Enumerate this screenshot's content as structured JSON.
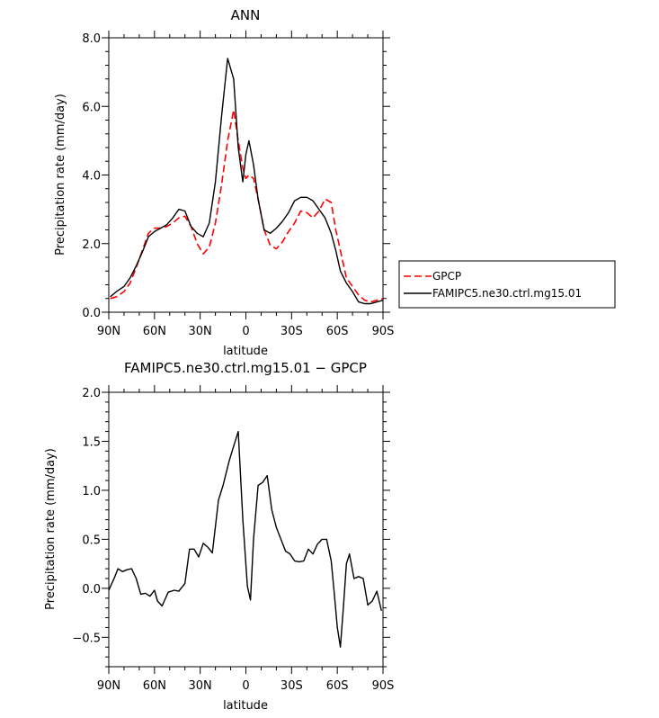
{
  "chart_data": [
    {
      "type": "line",
      "title": "ANN",
      "xlabel": "latitude",
      "ylabel": "Precipitation rate (mm/day)",
      "xlim": [
        90,
        -90
      ],
      "ylim": [
        0,
        8
      ],
      "xticks": [
        90,
        60,
        30,
        0,
        -30,
        -60,
        -90
      ],
      "xtick_labels": [
        "90N",
        "60N",
        "30N",
        "0",
        "30S",
        "60S",
        "90S"
      ],
      "yticks": [
        0,
        2,
        4,
        6,
        8
      ],
      "ytick_labels": [
        "0.0",
        "2.0",
        "4.0",
        "6.0",
        "8.0"
      ],
      "legend_position": "right",
      "series": [
        {
          "name": "GPCP",
          "color": "#ff0000",
          "dash": "dashed",
          "x": [
            89,
            85,
            80,
            76,
            72,
            68,
            64,
            60,
            56,
            52,
            48,
            44,
            40,
            36,
            32,
            28,
            24,
            20,
            16,
            12,
            8,
            5,
            2,
            0,
            -2,
            -5,
            -8,
            -12,
            -16,
            -20,
            -24,
            -28,
            -32,
            -36,
            -40,
            -44,
            -48,
            -52,
            -56,
            -59,
            -62,
            -66,
            -70,
            -74,
            -78,
            -82,
            -86,
            -90
          ],
          "y": [
            0.4,
            0.45,
            0.6,
            0.85,
            1.3,
            1.8,
            2.3,
            2.45,
            2.45,
            2.5,
            2.6,
            2.75,
            2.8,
            2.5,
            2.0,
            1.7,
            1.9,
            2.6,
            3.7,
            5.0,
            5.9,
            5.0,
            4.2,
            3.9,
            4.0,
            3.9,
            3.3,
            2.4,
            1.95,
            1.85,
            2.05,
            2.35,
            2.6,
            2.95,
            2.9,
            2.75,
            2.95,
            3.3,
            3.2,
            2.4,
            1.8,
            1.0,
            0.75,
            0.5,
            0.35,
            0.3,
            0.35,
            0.4
          ]
        },
        {
          "name": "FAMIPC5.ne30.ctrl.mg15.01",
          "color": "#000000",
          "dash": "solid",
          "x": [
            89,
            85,
            80,
            76,
            72,
            68,
            64,
            60,
            56,
            52,
            48,
            44,
            40,
            36,
            32,
            28,
            24,
            20,
            16,
            12,
            8,
            5,
            2,
            0,
            -2,
            -5,
            -8,
            -12,
            -16,
            -20,
            -24,
            -28,
            -32,
            -36,
            -40,
            -44,
            -48,
            -52,
            -56,
            -59,
            -62,
            -66,
            -70,
            -74,
            -78,
            -82,
            -86,
            -90
          ],
          "y": [
            0.45,
            0.6,
            0.75,
            1.0,
            1.35,
            1.75,
            2.2,
            2.35,
            2.45,
            2.55,
            2.75,
            3.0,
            2.95,
            2.5,
            2.3,
            2.2,
            2.6,
            3.8,
            5.7,
            7.4,
            6.8,
            4.8,
            3.8,
            4.6,
            5.0,
            4.3,
            3.3,
            2.4,
            2.3,
            2.45,
            2.65,
            2.9,
            3.25,
            3.35,
            3.35,
            3.25,
            3.0,
            2.75,
            2.3,
            1.8,
            1.2,
            0.85,
            0.6,
            0.3,
            0.25,
            0.25,
            0.3,
            0.35
          ]
        }
      ]
    },
    {
      "type": "line",
      "title": "FAMIPC5.ne30.ctrl.mg15.01 − GPCP",
      "xlabel": "latitude",
      "ylabel": "Precipitation rate (mm/day)",
      "xlim": [
        90,
        -90
      ],
      "ylim": [
        -0.8,
        2.0
      ],
      "xticks": [
        90,
        60,
        30,
        0,
        -30,
        -60,
        -90
      ],
      "xtick_labels": [
        "90N",
        "60N",
        "30N",
        "0",
        "30S",
        "60S",
        "90S"
      ],
      "yticks": [
        -0.5,
        0,
        0.5,
        1.0,
        1.5,
        2.0
      ],
      "ytick_labels": [
        "−0.5",
        "0.0",
        "0.5",
        "1.0",
        "1.5",
        "2.0"
      ],
      "series": [
        {
          "color": "#000000",
          "dash": "solid",
          "x": [
            90,
            86,
            84,
            81,
            78,
            75,
            72,
            69,
            66,
            63,
            60,
            58,
            55,
            51,
            47,
            44,
            40,
            37,
            34,
            31,
            28,
            25,
            22,
            18,
            15,
            11,
            8,
            5,
            2,
            -1,
            -3,
            -5,
            -8,
            -11,
            -14,
            -17,
            -20,
            -23,
            -26,
            -29,
            -32,
            -35,
            -38,
            -41,
            -44,
            -47,
            -50,
            -53,
            -56,
            -58,
            -60,
            -62,
            -64,
            -66,
            -68,
            -71,
            -74,
            -77,
            -80,
            -83,
            -86,
            -89
          ],
          "y": [
            -0.02,
            0.12,
            0.2,
            0.17,
            0.19,
            0.2,
            0.1,
            -0.06,
            -0.05,
            -0.08,
            -0.02,
            -0.13,
            -0.18,
            -0.04,
            -0.02,
            -0.03,
            0.05,
            0.4,
            0.4,
            0.32,
            0.46,
            0.42,
            0.36,
            0.9,
            1.05,
            1.3,
            1.45,
            1.6,
            0.7,
            0.02,
            -0.12,
            0.5,
            1.05,
            1.08,
            1.15,
            0.8,
            0.62,
            0.5,
            0.38,
            0.35,
            0.28,
            0.27,
            0.28,
            0.4,
            0.35,
            0.45,
            0.5,
            0.5,
            0.28,
            -0.05,
            -0.4,
            -0.6,
            -0.2,
            0.25,
            0.35,
            0.1,
            0.12,
            0.1,
            -0.17,
            -0.13,
            -0.03,
            -0.23
          ]
        }
      ]
    }
  ]
}
